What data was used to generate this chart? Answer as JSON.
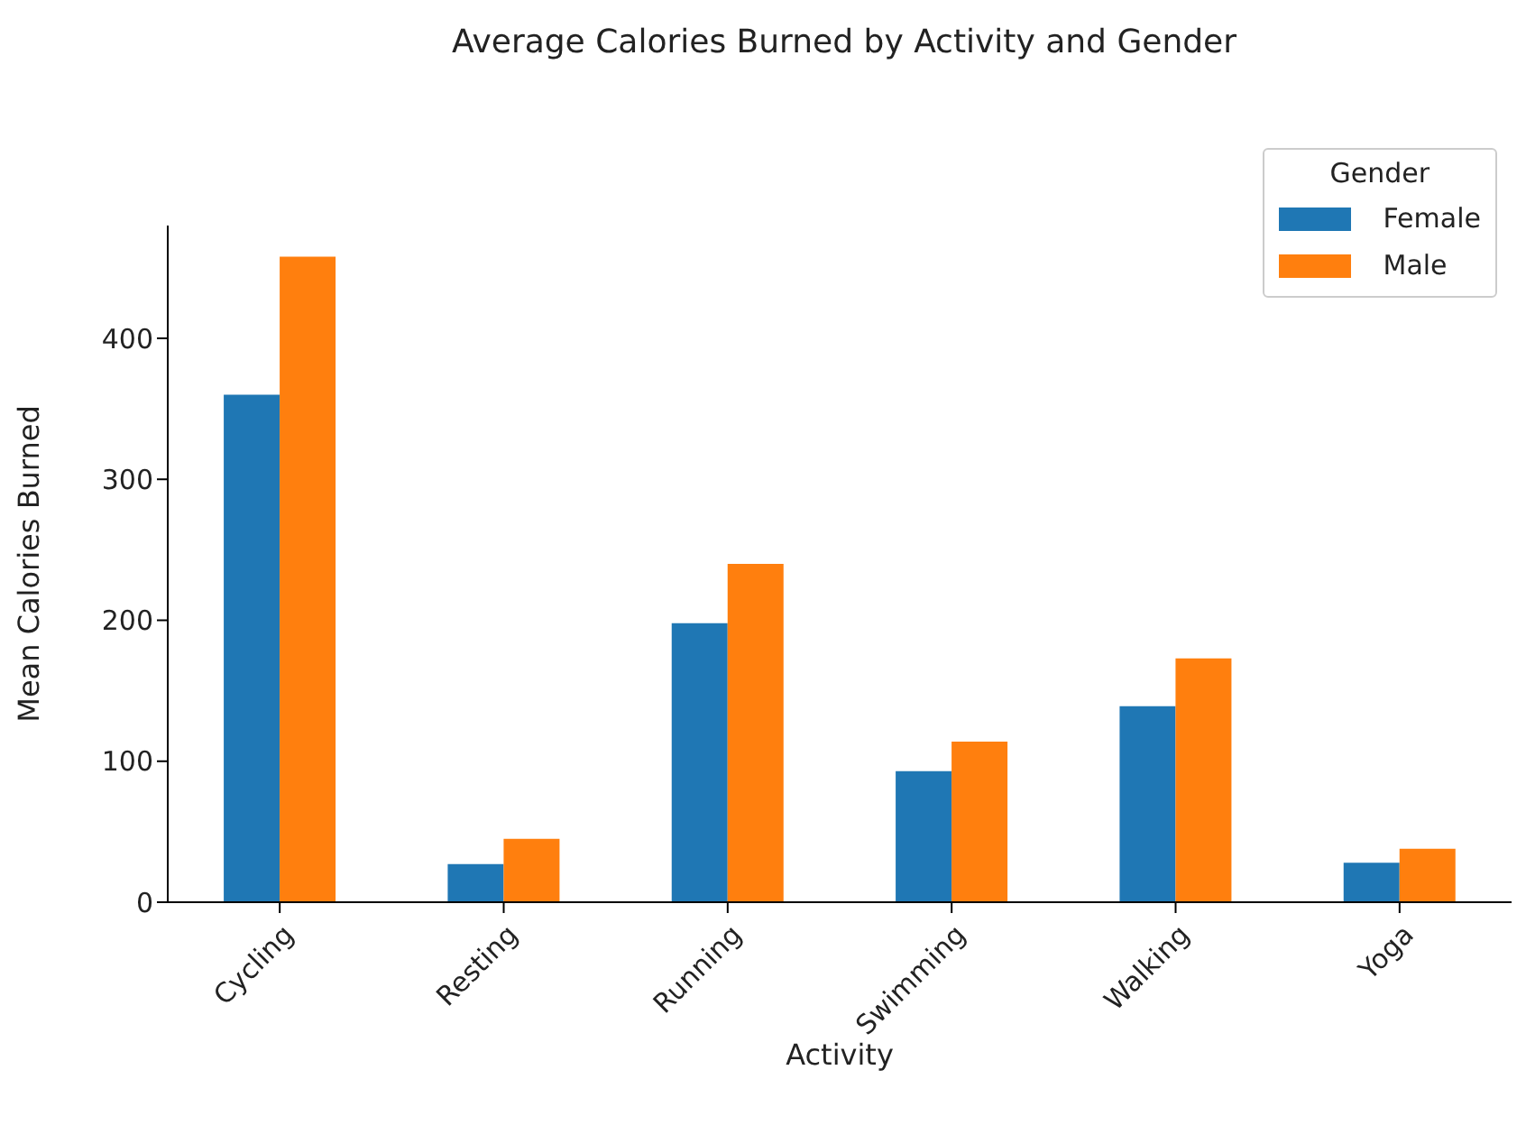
{
  "chart_data": {
    "type": "bar",
    "title": "Average Calories Burned by Activity and Gender",
    "xlabel": "Activity",
    "ylabel": "Mean Calories Burned",
    "legend_title": "Gender",
    "categories": [
      "Cycling",
      "Resting",
      "Running",
      "Swimming",
      "Walking",
      "Yoga"
    ],
    "series": [
      {
        "name": "Female",
        "color": "#1f77b4",
        "values": [
          360,
          27,
          198,
          93,
          139,
          28
        ]
      },
      {
        "name": "Male",
        "color": "#ff7f0e",
        "values": [
          458,
          45,
          240,
          114,
          173,
          38
        ]
      }
    ],
    "ylim": [
      0,
      480
    ],
    "yticks": [
      0,
      100,
      200,
      300,
      400
    ],
    "grid": false,
    "legend": "top right"
  }
}
